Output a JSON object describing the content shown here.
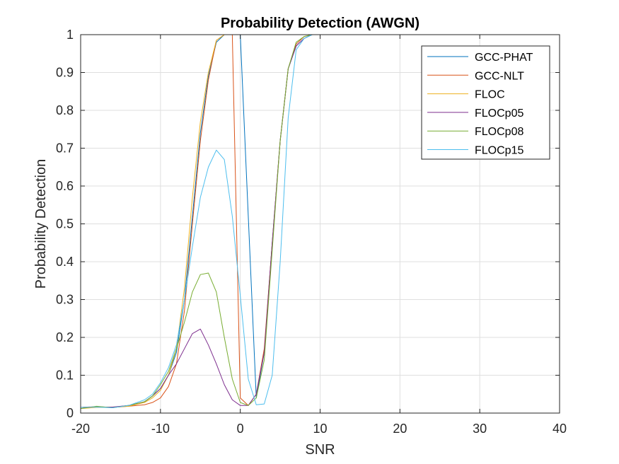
{
  "chart_data": {
    "type": "line",
    "title": "Probability Detection (AWGN)",
    "xlabel": "SNR",
    "ylabel": "Probability Detection",
    "xlim": [
      -20,
      40
    ],
    "ylim": [
      0,
      1
    ],
    "xticks": [
      -20,
      -10,
      0,
      10,
      20,
      30,
      40
    ],
    "xtick_labels": [
      "-20",
      "-10",
      "0",
      "10",
      "20",
      "30",
      "40"
    ],
    "yticks": [
      0,
      0.1,
      0.2,
      0.3,
      0.4,
      0.5,
      0.6,
      0.7,
      0.8,
      0.9,
      1
    ],
    "ytick_labels": [
      "0",
      "0.1",
      "0.2",
      "0.3",
      "0.4",
      "0.5",
      "0.6",
      "0.7",
      "0.8",
      "0.9",
      "1"
    ],
    "grid": true,
    "legend_position": "top-right",
    "series": [
      {
        "name": "GCC-PHAT",
        "color": "#0072BD",
        "x": [
          -20,
          -18,
          -16,
          -14,
          -12,
          -11,
          -10,
          -9,
          -8,
          -7,
          -6,
          -5,
          -4,
          -3,
          -2,
          -1,
          0,
          2,
          3,
          4,
          5,
          6,
          7,
          8,
          9,
          10,
          40
        ],
        "y": [
          0.015,
          0.016,
          0.015,
          0.02,
          0.03,
          0.045,
          0.065,
          0.1,
          0.16,
          0.3,
          0.52,
          0.74,
          0.89,
          0.98,
          1.0,
          1.0,
          1.0,
          0.04,
          0.16,
          0.45,
          0.72,
          0.91,
          0.97,
          0.99,
          1.0,
          1.0,
          1.0
        ]
      },
      {
        "name": "GCC-NLT",
        "color": "#D95319",
        "x": [
          -20,
          -18,
          -16,
          -14,
          -12,
          -11,
          -10,
          -9,
          -8,
          -7,
          -6,
          -5,
          -4,
          -3,
          -2,
          -1,
          0,
          1,
          2,
          3,
          4,
          5,
          6,
          7,
          8,
          9,
          10,
          40
        ],
        "y": [
          0.015,
          0.017,
          0.015,
          0.018,
          0.022,
          0.028,
          0.04,
          0.07,
          0.13,
          0.27,
          0.5,
          0.72,
          0.88,
          0.985,
          1.0,
          1.0,
          0.04,
          0.02,
          0.05,
          0.17,
          0.45,
          0.72,
          0.91,
          0.975,
          0.995,
          1.0,
          1.0,
          1.0
        ]
      },
      {
        "name": "FLOC",
        "color": "#EDB120",
        "x": [
          -20,
          -18,
          -16,
          -14,
          -12,
          -11,
          -10,
          -9,
          -8,
          -7,
          -6,
          -5,
          -4,
          -3,
          -2,
          -1,
          0,
          40
        ],
        "y": [
          0.012,
          0.015,
          0.016,
          0.018,
          0.028,
          0.04,
          0.06,
          0.1,
          0.17,
          0.33,
          0.57,
          0.77,
          0.9,
          0.985,
          1.0,
          1.0,
          1.0,
          1.0
        ]
      },
      {
        "name": "FLOCp05",
        "color": "#7E2F8E",
        "x": [
          -20,
          -18,
          -16,
          -14,
          -12,
          -11,
          -10,
          -9,
          -8,
          -7,
          -6,
          -5,
          -4,
          -3,
          -2,
          -1,
          0,
          1,
          2,
          3,
          4,
          5,
          6,
          7,
          8,
          9,
          10,
          40
        ],
        "y": [
          0.015,
          0.016,
          0.016,
          0.02,
          0.03,
          0.045,
          0.065,
          0.1,
          0.13,
          0.17,
          0.21,
          0.222,
          0.18,
          0.13,
          0.075,
          0.035,
          0.02,
          0.02,
          0.05,
          0.16,
          0.45,
          0.72,
          0.91,
          0.97,
          0.99,
          1.0,
          1.0,
          1.0
        ]
      },
      {
        "name": "FLOCp08",
        "color": "#77AC30",
        "x": [
          -20,
          -18,
          -16,
          -14,
          -12,
          -11,
          -10,
          -9,
          -8,
          -7,
          -6,
          -5,
          -4,
          -3,
          -2,
          -1,
          0,
          1,
          2,
          3,
          4,
          5,
          6,
          7,
          8,
          9,
          10,
          40
        ],
        "y": [
          0.012,
          0.018,
          0.014,
          0.02,
          0.03,
          0.045,
          0.075,
          0.11,
          0.17,
          0.24,
          0.32,
          0.366,
          0.37,
          0.32,
          0.2,
          0.09,
          0.028,
          0.02,
          0.04,
          0.14,
          0.43,
          0.72,
          0.91,
          0.98,
          0.995,
          1.0,
          1.0,
          1.0
        ]
      },
      {
        "name": "FLOCp15",
        "color": "#4DBEEE",
        "x": [
          -20,
          -18,
          -16,
          -14,
          -12,
          -11,
          -10,
          -9,
          -8,
          -7,
          -6,
          -5,
          -4,
          -3,
          -2,
          -1,
          0,
          1,
          2,
          3,
          4,
          5,
          6,
          7,
          8,
          9,
          10,
          40
        ],
        "y": [
          0.015,
          0.016,
          0.014,
          0.02,
          0.035,
          0.05,
          0.08,
          0.12,
          0.18,
          0.3,
          0.44,
          0.57,
          0.65,
          0.695,
          0.67,
          0.52,
          0.31,
          0.09,
          0.022,
          0.024,
          0.1,
          0.4,
          0.78,
          0.96,
          0.99,
          1.0,
          1.0,
          1.0
        ]
      }
    ]
  }
}
